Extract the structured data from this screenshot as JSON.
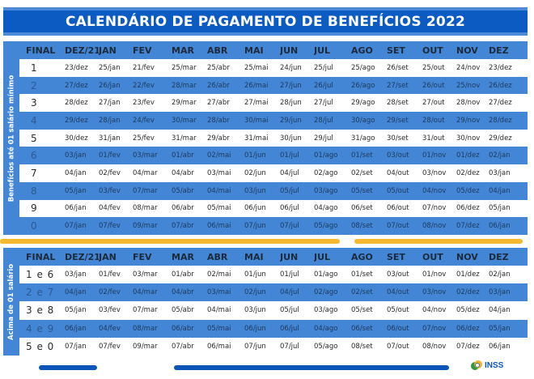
{
  "title": "CALENDÁRIO DE PAGAMENTO DE BENEFÍCIOS 2022",
  "columns": [
    "FINAL",
    "DEZ/21",
    "JAN",
    "FEV",
    "MAR",
    "ABR",
    "MAI",
    "JUN",
    "JUL",
    "AGO",
    "SET",
    "OUT",
    "NOV",
    "DEZ"
  ],
  "section1": {
    "side_label": "Benefícios até 01 salário mínimo",
    "rows": [
      [
        "1",
        "23/dez",
        "25/jan",
        "21/fev",
        "25/mar",
        "25/abr",
        "25/mai",
        "24/jun",
        "25/jul",
        "25/ago",
        "26/set",
        "25/out",
        "24/nov",
        "23/dez"
      ],
      [
        "2",
        "27/dez",
        "26/jan",
        "22/fev",
        "28/mar",
        "26/abr",
        "26/mai",
        "27/jun",
        "26/jul",
        "26/ago",
        "27/set",
        "26/out",
        "25/nov",
        "26/dez"
      ],
      [
        "3",
        "28/dez",
        "27/jan",
        "23/fev",
        "29/mar",
        "27/abr",
        "27/mai",
        "28/jun",
        "27/jul",
        "29/ago",
        "28/set",
        "27/out",
        "28/nov",
        "27/dez"
      ],
      [
        "4",
        "29/dez",
        "28/jan",
        "24/fev",
        "30/mar",
        "28/abr",
        "30/mai",
        "29/jun",
        "28/jul",
        "30/ago",
        "29/set",
        "28/out",
        "29/nov",
        "28/dez"
      ],
      [
        "5",
        "30/dez",
        "31/jan",
        "25/fev",
        "31/mar",
        "29/abr",
        "31/mai",
        "30/jun",
        "29/jul",
        "31/ago",
        "30/set",
        "31/out",
        "30/nov",
        "29/dez"
      ],
      [
        "6",
        "03/jan",
        "01/fev",
        "03/mar",
        "01/abr",
        "02/mai",
        "01/jun",
        "01/jul",
        "01/ago",
        "01/set",
        "03/out",
        "01/nov",
        "01/dez",
        "02/jan"
      ],
      [
        "7",
        "04/jan",
        "02/fev",
        "04/mar",
        "04/abr",
        "03/mai",
        "02/jun",
        "04/jul",
        "02/ago",
        "02/set",
        "04/out",
        "03/nov",
        "02/dez",
        "03/jan"
      ],
      [
        "8",
        "05/jan",
        "03/fev",
        "07/mar",
        "05/abr",
        "04/mai",
        "03/jun",
        "05/jul",
        "03/ago",
        "05/set",
        "05/out",
        "04/nov",
        "05/dez",
        "04/jan"
      ],
      [
        "9",
        "06/jan",
        "04/fev",
        "08/mar",
        "06/abr",
        "05/mai",
        "06/jun",
        "06/jul",
        "04/ago",
        "06/set",
        "06/out",
        "07/nov",
        "06/dez",
        "05/jan"
      ],
      [
        "0",
        "07/jan",
        "07/fev",
        "09/mar",
        "07/abr",
        "06/mai",
        "07/jun",
        "07/jul",
        "05/ago",
        "08/set",
        "07/out",
        "08/nov",
        "07/dez",
        "06/jan"
      ]
    ]
  },
  "section2": {
    "side_label": "Acima de 01 salário",
    "rows": [
      [
        "1 e 6",
        "03/jan",
        "01/fev",
        "03/mar",
        "01/abr",
        "02/mai",
        "01/jun",
        "01/jul",
        "01/ago",
        "01/set",
        "03/out",
        "01/nov",
        "01/dez",
        "02/jan"
      ],
      [
        "2 e 7",
        "04/jan",
        "02/fev",
        "04/mar",
        "04/abr",
        "03/mai",
        "02/jun",
        "04/jul",
        "02/ago",
        "02/set",
        "04/out",
        "03/nov",
        "02/dez",
        "03/jan"
      ],
      [
        "3 e 8",
        "05/jan",
        "03/fev",
        "07/mar",
        "05/abr",
        "04/mai",
        "03/jun",
        "05/jul",
        "03/ago",
        "05/set",
        "05/out",
        "04/nov",
        "05/dez",
        "04/jan"
      ],
      [
        "4 e 9",
        "06/jan",
        "04/fev",
        "08/mar",
        "06/abr",
        "05/mai",
        "06/jun",
        "06/jul",
        "04/ago",
        "06/set",
        "06/out",
        "07/nov",
        "06/dez",
        "05/jan"
      ],
      [
        "5 e 0",
        "07/jan",
        "07/fev",
        "09/mar",
        "07/abr",
        "06/mai",
        "07/jun",
        "07/jul",
        "05/ago",
        "08/set",
        "07/out",
        "08/nov",
        "07/dez",
        "06/jan"
      ]
    ]
  },
  "logo": {
    "text": "INSS",
    "icon": "inss-logo-icon"
  },
  "colors": {
    "title_bg": "#0b5bc3",
    "row_blue": "#4386d6",
    "accent_orange": "#f5b82e",
    "accent_navy": "#0b56b8"
  }
}
